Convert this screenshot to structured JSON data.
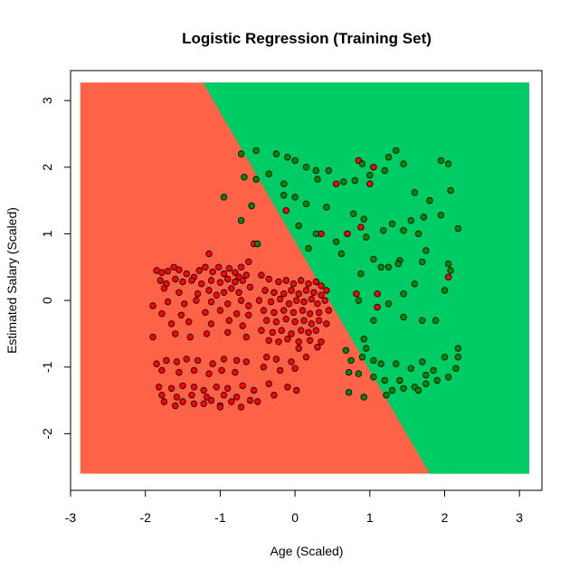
{
  "chart_data": {
    "type": "scatter",
    "title": "Logistic Regression (Training Set)",
    "xlabel": "Age (Scaled)",
    "ylabel": "Estimated Salary (Scaled)",
    "xlim": [
      -3.0,
      3.3
    ],
    "ylim": [
      -2.85,
      3.45
    ],
    "x_ticks": [
      -3,
      -2,
      -1,
      0,
      1,
      2,
      3
    ],
    "y_ticks": [
      -2,
      -1,
      0,
      1,
      2,
      3
    ],
    "grid": false,
    "background_regions": {
      "x_range": [
        -2.87,
        3.13
      ],
      "y_range": [
        -2.6,
        3.27
      ],
      "boundary_line": [
        [
          -1.23,
          3.27
        ],
        [
          1.8,
          -2.6
        ]
      ],
      "class_0_color": "#ff6347",
      "class_1_color": "#00cc66"
    },
    "series": [
      {
        "color": "#ff0000",
        "points": [
          [
            -1.85,
            0.45
          ],
          [
            -1.78,
            0.42
          ],
          [
            -1.7,
            0.44
          ],
          [
            -1.62,
            0.5
          ],
          [
            -1.55,
            0.46
          ],
          [
            -1.45,
            0.4
          ],
          [
            -1.35,
            0.35
          ],
          [
            -1.28,
            0.45
          ],
          [
            -1.2,
            0.5
          ],
          [
            -1.1,
            0.43
          ],
          [
            -1.02,
            0.5
          ],
          [
            -0.95,
            0.4
          ],
          [
            -0.88,
            0.48
          ],
          [
            -0.8,
            0.42
          ],
          [
            -0.72,
            0.5
          ],
          [
            -0.65,
            0.38
          ],
          [
            -1.8,
            0.3
          ],
          [
            -1.72,
            0.25
          ],
          [
            -1.6,
            0.32
          ],
          [
            -1.5,
            0.28
          ],
          [
            -1.38,
            0.3
          ],
          [
            -1.25,
            0.25
          ],
          [
            -1.12,
            0.3
          ],
          [
            -1.0,
            0.27
          ],
          [
            -0.9,
            0.32
          ],
          [
            -0.8,
            0.28
          ],
          [
            -0.7,
            0.3
          ],
          [
            -1.75,
            0.18
          ],
          [
            -1.55,
            0.12
          ],
          [
            -1.3,
            0.1
          ],
          [
            -1.15,
            0.15
          ],
          [
            -1.05,
            0.08
          ],
          [
            -0.95,
            0.12
          ],
          [
            -0.85,
            0.18
          ],
          [
            -0.75,
            0.12
          ],
          [
            -0.6,
            0.2
          ],
          [
            -1.9,
            -0.08
          ],
          [
            -1.7,
            -0.02
          ],
          [
            -1.48,
            -0.05
          ],
          [
            -1.32,
            0.0
          ],
          [
            -1.12,
            -0.02
          ],
          [
            -0.9,
            -0.05
          ],
          [
            -0.72,
            0.0
          ],
          [
            -0.62,
            -0.08
          ],
          [
            -1.78,
            -0.2
          ],
          [
            -1.52,
            -0.22
          ],
          [
            -1.2,
            -0.18
          ],
          [
            -1.0,
            -0.15
          ],
          [
            -0.78,
            -0.2
          ],
          [
            -0.62,
            -0.22
          ],
          [
            -1.65,
            -0.35
          ],
          [
            -1.42,
            -0.32
          ],
          [
            -1.12,
            -0.35
          ],
          [
            -0.88,
            -0.3
          ],
          [
            -0.7,
            -0.38
          ],
          [
            -1.9,
            -0.55
          ],
          [
            -1.6,
            -0.5
          ],
          [
            -1.4,
            -0.55
          ],
          [
            -1.18,
            -0.5
          ],
          [
            -0.9,
            -0.48
          ],
          [
            -0.65,
            -0.55
          ],
          [
            -1.85,
            -0.95
          ],
          [
            -1.72,
            -0.9
          ],
          [
            -1.58,
            -0.92
          ],
          [
            -1.45,
            -0.88
          ],
          [
            -1.3,
            -0.9
          ],
          [
            -1.1,
            -0.95
          ],
          [
            -0.95,
            -0.88
          ],
          [
            -0.78,
            -0.9
          ],
          [
            -0.65,
            -0.92
          ],
          [
            -1.78,
            -1.05
          ],
          [
            -1.55,
            -1.08
          ],
          [
            -1.35,
            -1.05
          ],
          [
            -1.15,
            -1.1
          ],
          [
            -0.98,
            -1.05
          ],
          [
            -0.8,
            -1.08
          ],
          [
            -1.82,
            -1.3
          ],
          [
            -1.65,
            -1.32
          ],
          [
            -1.5,
            -1.28
          ],
          [
            -1.35,
            -1.3
          ],
          [
            -1.22,
            -1.35
          ],
          [
            -1.05,
            -1.3
          ],
          [
            -0.9,
            -1.32
          ],
          [
            -0.7,
            -1.28
          ],
          [
            -0.55,
            -1.35
          ],
          [
            -1.78,
            -1.42
          ],
          [
            -1.58,
            -1.45
          ],
          [
            -1.38,
            -1.42
          ],
          [
            -1.18,
            -1.45
          ],
          [
            -0.95,
            -1.42
          ],
          [
            -0.78,
            -1.45
          ],
          [
            -1.75,
            -1.52
          ],
          [
            -1.6,
            -1.58
          ],
          [
            -1.5,
            -1.52
          ],
          [
            -1.35,
            -1.55
          ],
          [
            -1.12,
            -1.5
          ],
          [
            -1.0,
            -1.58
          ],
          [
            -0.85,
            -1.52
          ],
          [
            -0.72,
            -1.6
          ],
          [
            -0.6,
            -1.5
          ],
          [
            -0.5,
            -1.52
          ],
          [
            -1.0,
            -1.6
          ],
          [
            -1.22,
            -1.55
          ],
          [
            -1.15,
            0.7
          ],
          [
            -0.75,
            0.35
          ],
          [
            -0.62,
            0.58
          ],
          [
            -0.55,
            0.85
          ],
          [
            -0.45,
            0.38
          ],
          [
            -0.35,
            0.32
          ],
          [
            -0.22,
            0.28
          ],
          [
            -0.12,
            0.3
          ],
          [
            -0.02,
            0.25
          ],
          [
            0.08,
            0.3
          ],
          [
            0.18,
            0.25
          ],
          [
            0.28,
            0.28
          ],
          [
            0.35,
            0.22
          ],
          [
            -0.4,
            0.15
          ],
          [
            -0.28,
            0.12
          ],
          [
            -0.15,
            0.1
          ],
          [
            -0.05,
            0.15
          ],
          [
            0.05,
            0.1
          ],
          [
            0.15,
            0.15
          ],
          [
            0.25,
            0.12
          ],
          [
            0.35,
            0.08
          ],
          [
            0.42,
            0.15
          ],
          [
            -0.48,
            0.0
          ],
          [
            -0.32,
            -0.02
          ],
          [
            -0.2,
            0.02
          ],
          [
            -0.08,
            -0.05
          ],
          [
            0.02,
            0.0
          ],
          [
            0.12,
            -0.02
          ],
          [
            0.22,
            0.02
          ],
          [
            0.3,
            -0.05
          ],
          [
            0.4,
            0.0
          ],
          [
            -0.42,
            -0.15
          ],
          [
            -0.28,
            -0.18
          ],
          [
            -0.15,
            -0.15
          ],
          [
            -0.02,
            -0.18
          ],
          [
            0.1,
            -0.15
          ],
          [
            0.2,
            -0.2
          ],
          [
            0.32,
            -0.18
          ],
          [
            0.45,
            -0.15
          ],
          [
            -0.38,
            -0.3
          ],
          [
            -0.25,
            -0.32
          ],
          [
            -0.12,
            -0.28
          ],
          [
            0.0,
            -0.32
          ],
          [
            0.12,
            -0.3
          ],
          [
            0.22,
            -0.35
          ],
          [
            0.32,
            -0.3
          ],
          [
            0.42,
            -0.35
          ],
          [
            -0.45,
            -0.45
          ],
          [
            -0.3,
            -0.48
          ],
          [
            -0.18,
            -0.45
          ],
          [
            -0.05,
            -0.5
          ],
          [
            0.08,
            -0.45
          ],
          [
            0.18,
            -0.48
          ],
          [
            0.28,
            -0.45
          ],
          [
            -0.35,
            -0.6
          ],
          [
            -0.22,
            -0.62
          ],
          [
            -0.1,
            -0.58
          ],
          [
            0.05,
            -0.62
          ],
          [
            0.2,
            -0.6
          ],
          [
            0.35,
            -0.62
          ],
          [
            0.05,
            -0.72
          ],
          [
            0.3,
            -0.7
          ],
          [
            -0.38,
            -0.85
          ],
          [
            -0.25,
            -0.88
          ],
          [
            -0.05,
            -0.92
          ],
          [
            0.15,
            -0.85
          ],
          [
            -0.42,
            -1.0
          ],
          [
            -0.2,
            -1.05
          ],
          [
            0.0,
            -1.02
          ],
          [
            -0.35,
            -1.25
          ],
          [
            -0.1,
            -1.3
          ],
          [
            0.02,
            -1.35
          ],
          [
            -0.28,
            -1.42
          ],
          [
            -0.12,
            1.35
          ],
          [
            0.35,
            1.0
          ],
          [
            0.7,
            1.0
          ],
          [
            0.55,
            1.75
          ],
          [
            0.85,
            2.1
          ],
          [
            1.0,
            1.75
          ],
          [
            1.05,
            2.0
          ],
          [
            2.05,
            0.35
          ],
          [
            0.82,
            0.1
          ],
          [
            1.1,
            -0.1
          ],
          [
            1.1,
            0.1
          ],
          [
            0.88,
            1.1
          ]
        ]
      },
      {
        "color": "#008800",
        "points": [
          [
            -0.72,
            2.2
          ],
          [
            -0.52,
            2.25
          ],
          [
            -0.25,
            2.2
          ],
          [
            -0.1,
            2.15
          ],
          [
            0.0,
            2.1
          ],
          [
            0.15,
            2.0
          ],
          [
            0.28,
            1.95
          ],
          [
            0.45,
            1.95
          ],
          [
            0.9,
            2.05
          ],
          [
            1.25,
            2.15
          ],
          [
            1.35,
            2.25
          ],
          [
            1.45,
            2.05
          ],
          [
            1.95,
            2.1
          ],
          [
            2.05,
            2.05
          ],
          [
            -0.35,
            1.9
          ],
          [
            -0.15,
            1.75
          ],
          [
            -0.68,
            1.85
          ],
          [
            -0.52,
            1.82
          ],
          [
            0.3,
            1.82
          ],
          [
            0.65,
            1.78
          ],
          [
            0.8,
            1.8
          ],
          [
            1.0,
            1.88
          ],
          [
            1.2,
            1.95
          ],
          [
            1.6,
            1.62
          ],
          [
            1.8,
            1.5
          ],
          [
            2.08,
            1.65
          ],
          [
            -0.15,
            1.58
          ],
          [
            0.0,
            1.55
          ],
          [
            0.15,
            1.45
          ],
          [
            0.42,
            1.4
          ],
          [
            0.78,
            1.3
          ],
          [
            0.92,
            1.22
          ],
          [
            1.3,
            1.15
          ],
          [
            1.55,
            1.2
          ],
          [
            1.72,
            1.25
          ],
          [
            1.95,
            1.28
          ],
          [
            -0.95,
            1.55
          ],
          [
            -0.58,
            1.42
          ],
          [
            -0.72,
            1.2
          ],
          [
            0.05,
            1.12
          ],
          [
            0.28,
            1.0
          ],
          [
            0.55,
            0.88
          ],
          [
            0.95,
            0.95
          ],
          [
            1.18,
            1.05
          ],
          [
            1.45,
            1.05
          ],
          [
            1.65,
            1.0
          ],
          [
            2.18,
            1.08
          ],
          [
            -0.5,
            0.85
          ],
          [
            0.18,
            0.78
          ],
          [
            0.62,
            0.7
          ],
          [
            1.05,
            0.62
          ],
          [
            1.4,
            0.6
          ],
          [
            1.75,
            0.75
          ],
          [
            2.05,
            0.55
          ],
          [
            0.88,
            0.4
          ],
          [
            1.15,
            0.5
          ],
          [
            1.38,
            0.55
          ],
          [
            1.7,
            0.58
          ],
          [
            2.08,
            0.45
          ],
          [
            1.25,
            0.5
          ],
          [
            1.6,
            0.25
          ],
          [
            2.0,
            0.15
          ],
          [
            1.45,
            0.1
          ],
          [
            0.85,
            0.0
          ],
          [
            1.25,
            -0.05
          ],
          [
            1.05,
            -0.3
          ],
          [
            1.45,
            -0.25
          ],
          [
            1.7,
            -0.3
          ],
          [
            1.88,
            -0.3
          ],
          [
            0.92,
            -0.58
          ],
          [
            0.95,
            -0.72
          ],
          [
            0.68,
            -0.75
          ],
          [
            0.75,
            -0.9
          ],
          [
            0.9,
            -0.85
          ],
          [
            1.05,
            -0.9
          ],
          [
            1.15,
            -0.95
          ],
          [
            1.35,
            -0.95
          ],
          [
            1.55,
            -1.02
          ],
          [
            1.7,
            -0.92
          ],
          [
            1.85,
            -1.05
          ],
          [
            2.0,
            -0.85
          ],
          [
            2.18,
            -0.72
          ],
          [
            2.18,
            -0.85
          ],
          [
            2.15,
            -1.02
          ],
          [
            0.72,
            -1.08
          ],
          [
            0.85,
            -1.1
          ],
          [
            1.05,
            -1.15
          ],
          [
            1.2,
            -1.2
          ],
          [
            1.4,
            -1.2
          ],
          [
            1.6,
            -1.3
          ],
          [
            1.75,
            -1.25
          ],
          [
            1.9,
            -1.2
          ],
          [
            2.05,
            -1.15
          ],
          [
            0.72,
            -1.38
          ],
          [
            0.92,
            -1.45
          ],
          [
            1.22,
            -1.42
          ],
          [
            1.3,
            -1.35
          ],
          [
            1.45,
            -1.32
          ],
          [
            1.65,
            -1.35
          ],
          [
            1.75,
            -1.12
          ]
        ]
      }
    ]
  }
}
